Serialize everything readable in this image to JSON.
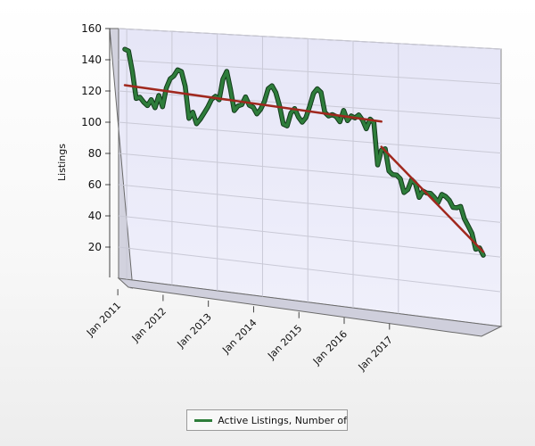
{
  "chart_data": {
    "type": "line",
    "title": "",
    "xlabel": "",
    "ylabel": "Listings",
    "ylim": [
      0,
      160
    ],
    "yticks": [
      20,
      40,
      60,
      80,
      100,
      120,
      140,
      160
    ],
    "grid": true,
    "legend_position": "bottom",
    "x_tick_labels": [
      "Jan 2011",
      "Jan 2012",
      "Jan 2013",
      "Jan 2014",
      "Jan 2015",
      "Jan 2016",
      "Jan 2017"
    ],
    "x_start": "2011-01",
    "x_end": "2017-12",
    "series": [
      {
        "name": "Active Listings, Number of",
        "color": "#2e7d3b",
        "values": [
          147,
          146,
          133,
          116,
          117,
          114,
          112,
          116,
          111,
          119,
          112,
          124,
          130,
          132,
          136,
          135,
          126,
          106,
          110,
          103,
          106,
          110,
          114,
          119,
          121,
          119,
          132,
          137,
          126,
          113,
          116,
          117,
          122,
          117,
          116,
          112,
          115,
          120,
          128,
          130,
          126,
          118,
          107,
          106,
          114,
          117,
          112,
          109,
          112,
          119,
          127,
          130,
          128,
          116,
          114,
          115,
          114,
          111,
          118,
          112,
          115,
          114,
          116,
          113,
          108,
          114,
          112,
          87,
          96,
          97,
          84,
          82,
          82,
          80,
          72,
          74,
          80,
          78,
          70,
          74,
          73,
          73,
          71,
          68,
          73,
          72,
          70,
          66,
          66,
          67,
          60,
          56,
          52,
          43,
          44,
          40
        ]
      }
    ],
    "trend_lines": [
      {
        "color": "#a0281e",
        "points": [
          [
            0,
            124
          ],
          [
            68,
            113
          ]
        ]
      },
      {
        "color": "#a0281e",
        "points": [
          [
            68,
            98
          ],
          [
            95,
            42
          ]
        ]
      }
    ]
  },
  "legend": {
    "label": "Active Listings, Number of",
    "color": "#2e7d3b"
  }
}
